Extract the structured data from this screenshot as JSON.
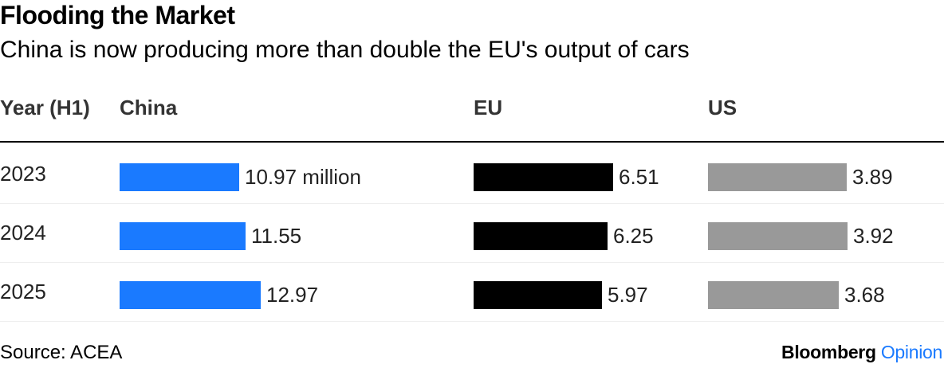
{
  "chart_data": {
    "type": "table",
    "title": "Flooding the Market",
    "subtitle": "China is now producing more than double the EU's output of cars",
    "columns": [
      "Year (H1)",
      "China",
      "EU",
      "US"
    ],
    "unit_label": "million",
    "rows": [
      {
        "year": "2023",
        "china": 10.97,
        "eu": 6.51,
        "us": 3.89,
        "china_label": "10.97 million",
        "eu_label": "6.51",
        "us_label": "3.89"
      },
      {
        "year": "2024",
        "china": 11.55,
        "eu": 6.25,
        "us": 3.92,
        "china_label": "11.55",
        "eu_label": "6.25",
        "us_label": "3.92"
      },
      {
        "year": "2025",
        "china": 12.97,
        "eu": 5.97,
        "us": 3.68,
        "china_label": "12.97",
        "eu_label": "5.97",
        "us_label": "3.68"
      }
    ],
    "colors": {
      "china": "#1a7aff",
      "eu": "#000000",
      "us": "#999999",
      "brand_accent": "#1a7aff"
    }
  },
  "footer": {
    "source": "Source: ACEA",
    "brand_name": "Bloomberg",
    "brand_suffix": "Opinion"
  }
}
